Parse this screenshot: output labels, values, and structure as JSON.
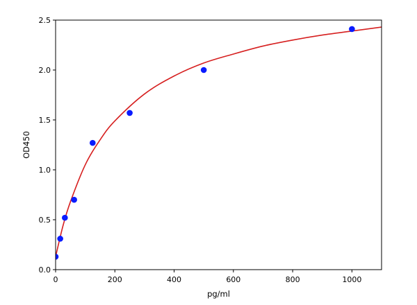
{
  "chart_data": {
    "type": "scatter",
    "title": "",
    "xlabel": "pg/ml",
    "ylabel": "OD450",
    "xlim": [
      0,
      1100
    ],
    "ylim": [
      0,
      2.5
    ],
    "xticks": [
      0,
      200,
      400,
      600,
      800,
      1000
    ],
    "yticks": [
      0.0,
      0.5,
      1.0,
      1.5,
      2.0,
      2.5
    ],
    "xtick_labels": [
      "0",
      "200",
      "400",
      "600",
      "800",
      "1000"
    ],
    "ytick_labels": [
      "0.0",
      "0.5",
      "1.0",
      "1.5",
      "2.0",
      "2.5"
    ],
    "grid": false,
    "legend": null,
    "series": [
      {
        "kind": "points",
        "color": "#0a1bff",
        "x": [
          0,
          15.6,
          31.25,
          62.5,
          125,
          250,
          500,
          1000
        ],
        "y": [
          0.13,
          0.31,
          0.52,
          0.7,
          1.27,
          1.57,
          2.0,
          2.41
        ]
      },
      {
        "kind": "fitted-curve",
        "color": "#d61f1f",
        "x": [
          0,
          25,
          50,
          100,
          150,
          200,
          300,
          400,
          500,
          600,
          700,
          800,
          900,
          1000,
          1100
        ],
        "y": [
          0.13,
          0.44,
          0.68,
          1.05,
          1.3,
          1.49,
          1.76,
          1.94,
          2.07,
          2.16,
          2.24,
          2.3,
          2.35,
          2.39,
          2.43
        ]
      }
    ]
  }
}
